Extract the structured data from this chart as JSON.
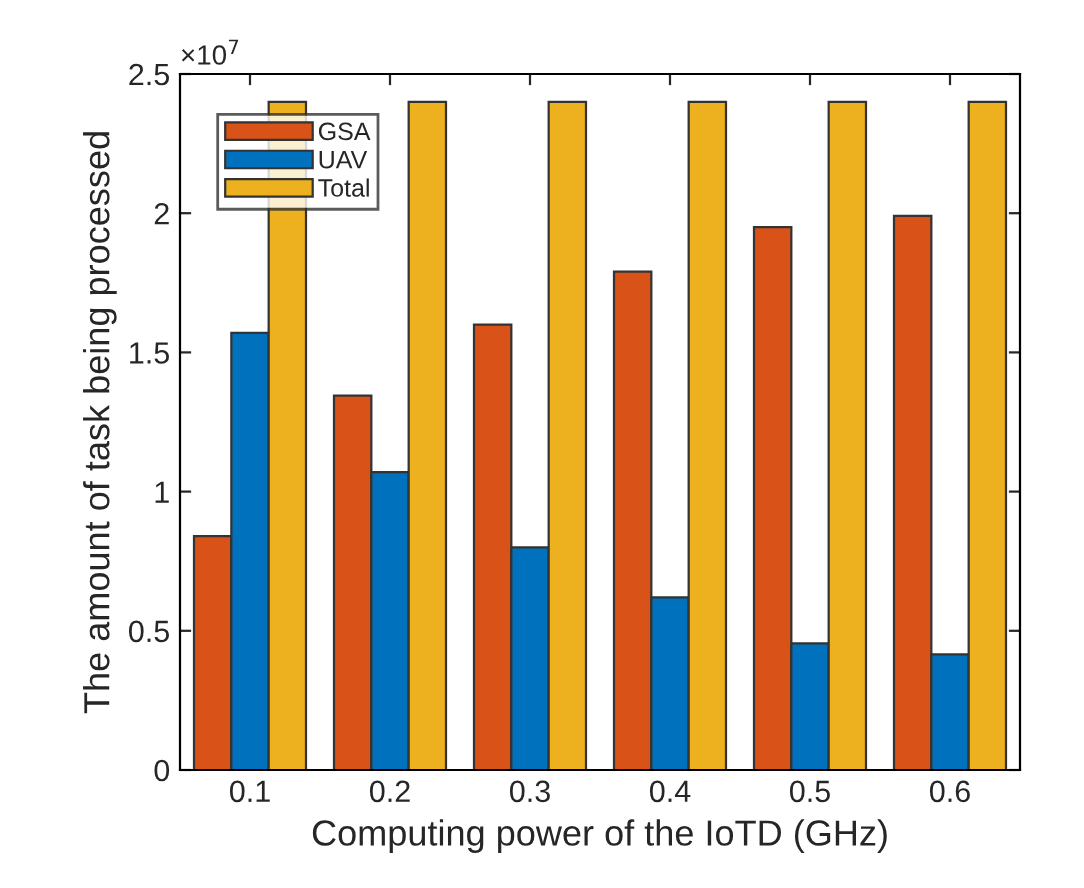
{
  "chart_data": {
    "type": "bar",
    "xlabel": "Computing power of the IoTD (GHz)",
    "ylabel": "The amount of task being processed",
    "categories": [
      "0.1",
      "0.2",
      "0.3",
      "0.4",
      "0.5",
      "0.6"
    ],
    "series": [
      {
        "name": "GSA",
        "color": "#d95319",
        "values": [
          0.84,
          1.345,
          1.6,
          1.79,
          1.95,
          1.99
        ]
      },
      {
        "name": "UAV",
        "color": "#0072bd",
        "values": [
          1.57,
          1.07,
          0.8,
          0.62,
          0.455,
          0.415
        ]
      },
      {
        "name": "Total",
        "color": "#edb120",
        "values": [
          2.4,
          2.4,
          2.4,
          2.4,
          2.4,
          2.4
        ]
      }
    ],
    "ylim": [
      0,
      2.5
    ],
    "yticks": [
      0,
      {
        "value": 0.5,
        "label": "0.5"
      },
      1,
      {
        "value": 1.5,
        "label": "1.5"
      },
      2,
      {
        "value": 2.5,
        "label": "2.5"
      }
    ],
    "annotations": [
      "×10$^{7}$"
    ],
    "legend": "top left",
    "grid": false
  }
}
